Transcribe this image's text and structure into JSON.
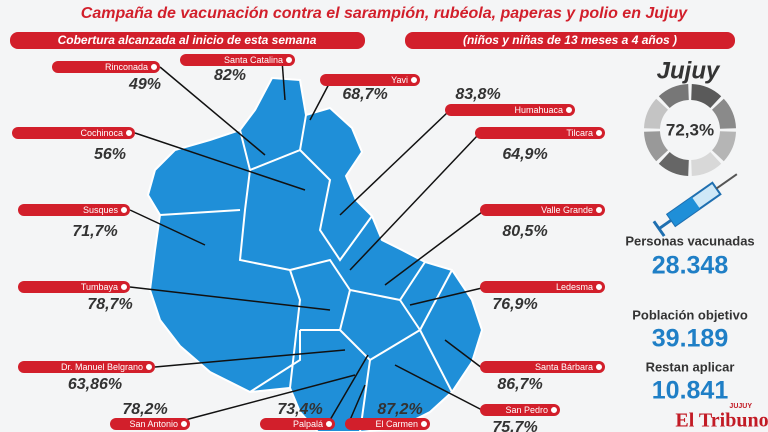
{
  "header": {
    "title": "Campaña de vacunación contra el sarampión, rubéola, paperas y polio en Jujuy",
    "subtitle_left": "Cobertura alcanzada al inicio de esta semana",
    "subtitle_right": "(niños y niñas de 13 meses a 4 años )"
  },
  "regions": [
    {
      "name": "Rinconada",
      "value": "49%"
    },
    {
      "name": "Santa Catalina",
      "value": "82%"
    },
    {
      "name": "Yavi",
      "value": "68,7%"
    },
    {
      "name": "Humahuaca",
      "value": "83,8%"
    },
    {
      "name": "Cochinoca",
      "value": "56%"
    },
    {
      "name": "Tilcara",
      "value": "64,9%"
    },
    {
      "name": "Susques",
      "value": "71,7%"
    },
    {
      "name": "Valle Grande",
      "value": "80,5%"
    },
    {
      "name": "Tumbaya",
      "value": "78,7%"
    },
    {
      "name": "Ledesma",
      "value": "76,9%"
    },
    {
      "name": "Dr. Manuel Belgrano",
      "value": "63,86%"
    },
    {
      "name": "Santa Bárbara",
      "value": "86,7%"
    },
    {
      "name": "San Antonio",
      "value": "78,2%"
    },
    {
      "name": "Palpalá",
      "value": "73,4%"
    },
    {
      "name": "El Carmen",
      "value": "87,2%"
    },
    {
      "name": "San Pedro",
      "value": "75,7%"
    }
  ],
  "summary": {
    "province": "Jujuy",
    "coverage": "72,3%",
    "stats": [
      {
        "label": "Personas vacunadas",
        "value": "28.348"
      },
      {
        "label": "Población objetivo",
        "value": "39.189"
      },
      {
        "label": "Restan aplicar",
        "value": "10.841"
      }
    ]
  },
  "footer": {
    "logo": "El Tribuno",
    "logo_sub": "JUJUY"
  }
}
